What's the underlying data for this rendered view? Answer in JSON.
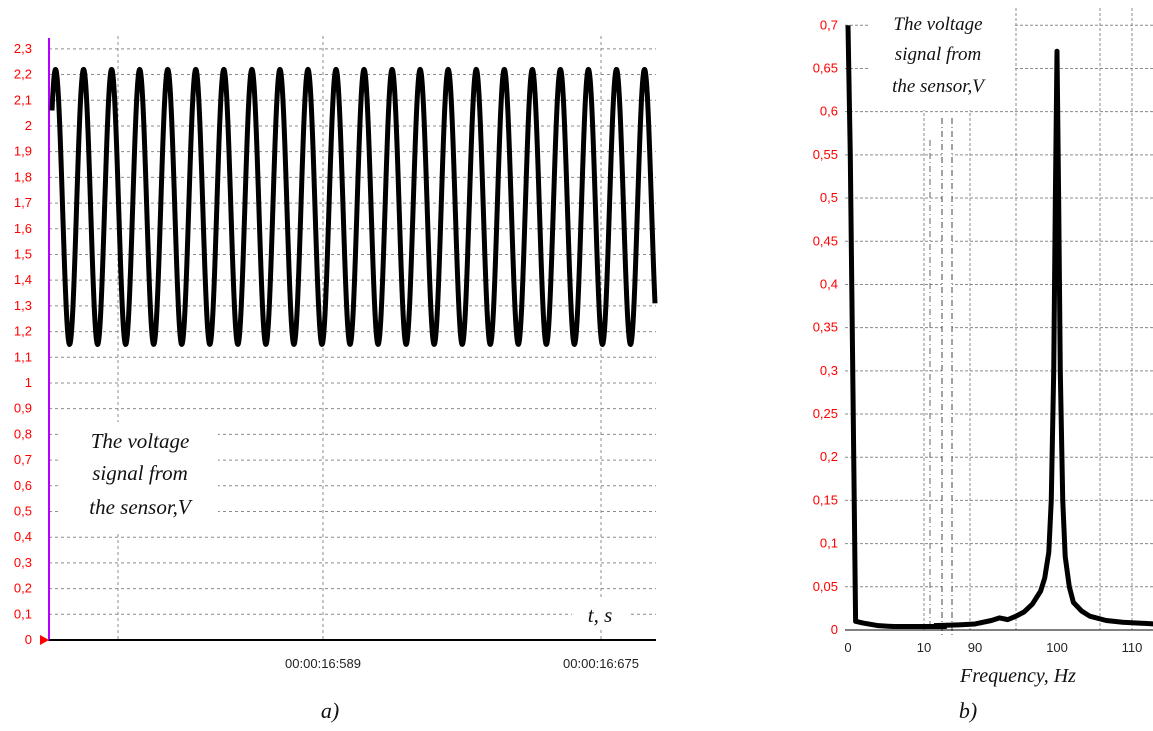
{
  "chart_data": [
    {
      "type": "line",
      "caption": "a)",
      "annotation": [
        "The voltage",
        "signal from",
        "the sensor,V"
      ],
      "xlabel": "t, s",
      "x_tick_labels": [
        "00:00:16:589",
        "00:00:16:675"
      ],
      "y_tick_labels": [
        "0",
        "0,1",
        "0,2",
        "0,3",
        "0,4",
        "0,5",
        "0,6",
        "0,7",
        "0,8",
        "0,9",
        "1",
        "1,1",
        "1,2",
        "1,3",
        "1,4",
        "1,5",
        "1,6",
        "1,7",
        "1,8",
        "1,9",
        "2",
        "2,1",
        "2,2",
        "2,3"
      ],
      "ylim": [
        0,
        2.35
      ],
      "grid": true,
      "series": [
        {
          "values": {
            "cycles": 21.5,
            "min": 1.15,
            "max": 2.22,
            "start": 2.06
          }
        }
      ],
      "colors": {
        "line": "#000000",
        "ytick": "#ff0000",
        "axis": "#b400ff"
      }
    },
    {
      "type": "line",
      "caption": "b)",
      "annotation": [
        "The voltage",
        "signal from",
        "the sensor,V"
      ],
      "xlabel": "Frequency, Hz",
      "x_tick_labels": [
        "0",
        "10",
        "90",
        "100",
        "110"
      ],
      "y_tick_labels": [
        "0",
        "0,05",
        "0,1",
        "0,15",
        "0,2",
        "0,25",
        "0,3",
        "0,35",
        "0,4",
        "0,45",
        "0,5",
        "0,55",
        "0,6",
        "0,65",
        "0,7"
      ],
      "ylim": [
        0,
        0.72
      ],
      "grid": true,
      "axis_break": true,
      "series": [
        {
          "segments": [
            {
              "x": [
                0,
                0.3,
                1,
                2,
                4,
                6,
                8,
                10,
                12,
                13
              ],
              "y": [
                0.7,
                0.55,
                0.01,
                0.008,
                0.005,
                0.004,
                0.004,
                0.004,
                0.004,
                0.004
              ]
            },
            {
              "x": [
                85,
                88,
                90,
                92,
                93,
                94,
                95,
                96,
                97,
                98,
                98.5,
                99,
                99.3,
                99.6,
                99.8,
                100,
                100.2,
                100.4,
                100.7,
                101,
                101.5,
                102,
                103,
                104,
                106,
                108,
                110,
                112
              ],
              "y": [
                0.005,
                0.006,
                0.007,
                0.011,
                0.014,
                0.012,
                0.016,
                0.021,
                0.03,
                0.045,
                0.06,
                0.09,
                0.15,
                0.3,
                0.5,
                0.67,
                0.5,
                0.3,
                0.15,
                0.085,
                0.05,
                0.032,
                0.022,
                0.016,
                0.011,
                0.009,
                0.008,
                0.007
              ]
            }
          ]
        }
      ],
      "colors": {
        "line": "#000000",
        "ytick": "#ff0000"
      }
    }
  ]
}
